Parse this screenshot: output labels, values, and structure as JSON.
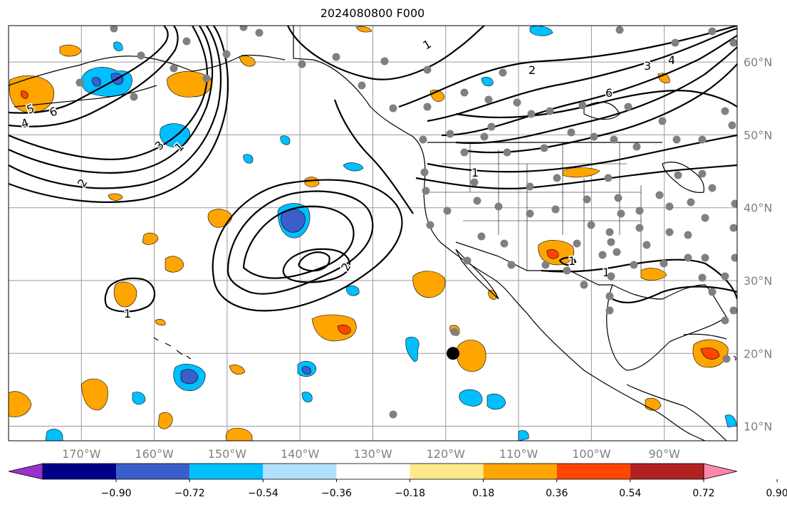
{
  "title": "2024080800 F000",
  "map": {
    "lon_range": [
      -180,
      -80
    ],
    "lat_range": [
      8,
      65
    ],
    "lon_ticks": [
      {
        "value": -170,
        "label": "170°W"
      },
      {
        "value": -160,
        "label": "160°W"
      },
      {
        "value": -150,
        "label": "150°W"
      },
      {
        "value": -140,
        "label": "140°W"
      },
      {
        "value": -130,
        "label": "130°W"
      },
      {
        "value": -120,
        "label": "120°W"
      },
      {
        "value": -110,
        "label": "110°W"
      },
      {
        "value": -100,
        "label": "100°W"
      },
      {
        "value": -90,
        "label": "90°W"
      }
    ],
    "lat_ticks": [
      {
        "value": 10,
        "label": "10°N"
      },
      {
        "value": 20,
        "label": "20°N"
      },
      {
        "value": 30,
        "label": "30°N"
      },
      {
        "value": 40,
        "label": "40°N"
      },
      {
        "value": 50,
        "label": "50°N"
      },
      {
        "value": 60,
        "label": "60°N"
      }
    ],
    "contour_labels": [
      "1",
      "2",
      "3",
      "4",
      "5",
      "6",
      "1",
      "2",
      "3",
      "4",
      "6",
      "1",
      "1",
      "1",
      "2",
      "1"
    ],
    "marker": {
      "lon": -119,
      "lat": 20,
      "color": "#000000"
    },
    "station_color": "#808080"
  },
  "colorbar": {
    "colors": [
      "#9932cc",
      "#00008b",
      "#3a5fcd",
      "#00bfff",
      "#b0e2ff",
      "#ffffff",
      "#fde98b",
      "#ffa500",
      "#ff4500",
      "#b22222",
      "#ff88aa"
    ],
    "tick_labels": [
      "−0.90",
      "−0.72",
      "−0.54",
      "−0.36",
      "−0.18",
      "0.18",
      "0.36",
      "0.54",
      "0.72",
      "0.90"
    ]
  }
}
